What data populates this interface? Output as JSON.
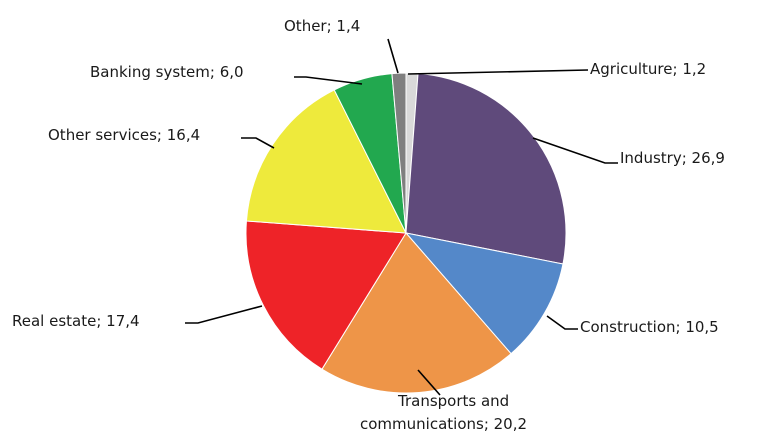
{
  "chart_data": {
    "type": "pie",
    "title": "",
    "start_angle_deg": 0,
    "direction": "clockwise",
    "slices": [
      {
        "label": "Agriculture; 1,2",
        "category": "Agriculture",
        "value": 1.2,
        "color": "#d9d9d9"
      },
      {
        "label": "Industry; 26,9",
        "category": "Industry",
        "value": 26.9,
        "color": "#5f4a7b"
      },
      {
        "label": "Construction; 10,5",
        "category": "Construction",
        "value": 10.5,
        "color": "#5488c9"
      },
      {
        "label": "Transports and communications; 20,2",
        "label_lines": [
          "Transports and",
          "communications; 20,2"
        ],
        "category": "Transports and communications",
        "value": 20.2,
        "color": "#ee9548"
      },
      {
        "label": "Real estate; 17,4",
        "category": "Real estate",
        "value": 17.4,
        "color": "#ee2328"
      },
      {
        "label": "Other services; 16,4",
        "category": "Other services",
        "value": 16.4,
        "color": "#eeea3c"
      },
      {
        "label": "Banking system; 6,0",
        "category": "Banking system",
        "value": 6.0,
        "color": "#22a84f"
      },
      {
        "label": "Other; 1,4",
        "category": "Other",
        "value": 1.4,
        "color": "#7f7f7f"
      }
    ]
  }
}
